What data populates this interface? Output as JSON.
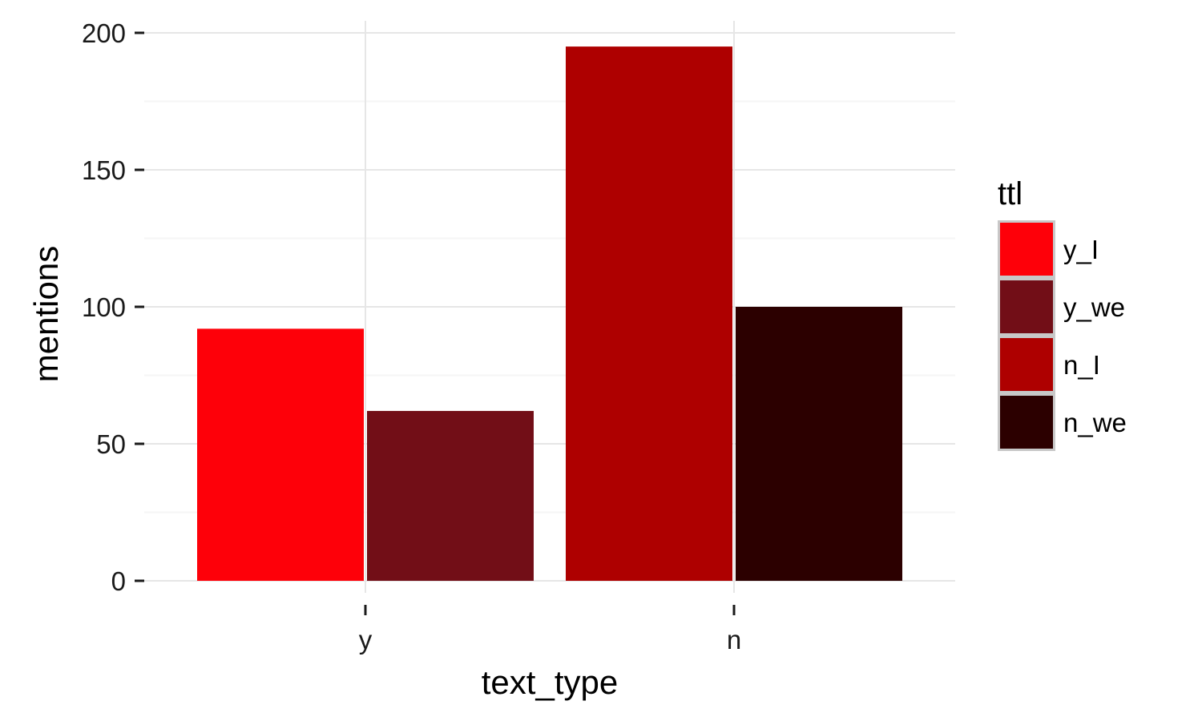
{
  "chart_data": {
    "type": "bar",
    "categories": [
      "y",
      "n"
    ],
    "series": [
      {
        "name": "y_I",
        "values": [
          92,
          null
        ],
        "color": "#fe0009"
      },
      {
        "name": "y_we",
        "values": [
          62,
          null
        ],
        "color": "#720e17"
      },
      {
        "name": "n_I",
        "values": [
          null,
          195
        ],
        "color": "#ae0000"
      },
      {
        "name": "n_we",
        "values": [
          null,
          100
        ],
        "color": "#2c0000"
      }
    ],
    "bars": [
      {
        "category": "y",
        "series": "y_I",
        "value": 92
      },
      {
        "category": "y",
        "series": "y_we",
        "value": 62
      },
      {
        "category": "n",
        "series": "n_I",
        "value": 195
      },
      {
        "category": "n",
        "series": "n_we",
        "value": 100
      }
    ],
    "xlabel": "text_type",
    "ylabel": "mentions",
    "ylim": [
      0,
      200
    ],
    "yticks": [
      0,
      50,
      100,
      150,
      200
    ],
    "legend_title": "ttl",
    "legend_position": "right",
    "grid": true
  }
}
